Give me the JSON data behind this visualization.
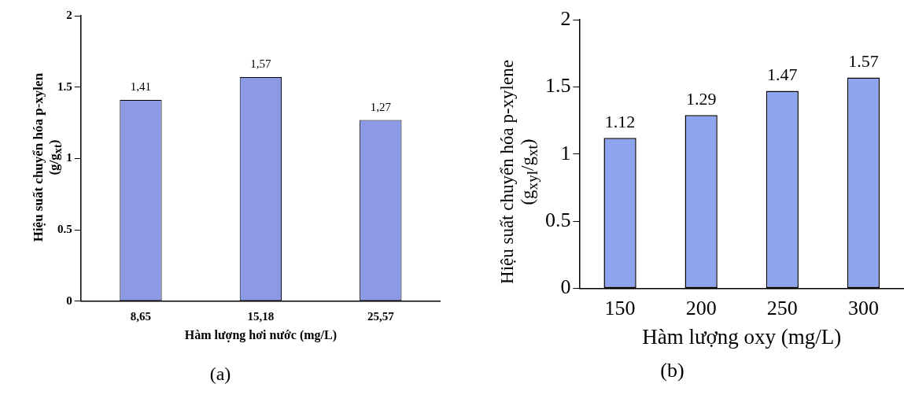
{
  "chart_data": [
    {
      "type": "bar",
      "xlabel": "Hàm lượng hơi nước (mg/L)",
      "ylabel": "Hiệu suất chuyển hóa p-xylen\n(g/g$_{xt}$)",
      "categories": [
        "8,65",
        "15,18",
        "25,57"
      ],
      "values": [
        1.41,
        1.57,
        1.27
      ],
      "value_labels": [
        "1,41",
        "1,57",
        "1,27"
      ],
      "color": "#8c9ae6",
      "ylim": [
        0,
        2
      ],
      "yticks": [
        0,
        0.5,
        1,
        1.5,
        2
      ],
      "grid": false,
      "legend": false,
      "annotations": [
        "(a)"
      ]
    },
    {
      "type": "bar",
      "xlabel": "Hàm lượng oxy (mg/L)",
      "ylabel": "Hiệu suất chuyển hóa p-xylene\n(g$_{xyl}$/g$_{xt}$)",
      "categories": [
        "150",
        "200",
        "250",
        "300"
      ],
      "values": [
        1.12,
        1.29,
        1.47,
        1.57
      ],
      "data_labels": true,
      "color": "#8ea4ee",
      "ylim": [
        0,
        2
      ],
      "yticks": [
        0,
        0.5,
        1,
        1.5,
        2
      ],
      "grid": false,
      "legend": false,
      "annotations": [
        "(b)"
      ]
    }
  ]
}
